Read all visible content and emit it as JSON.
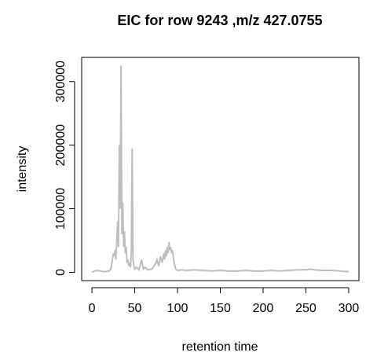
{
  "chart_data": {
    "type": "line",
    "title": "EIC for row 9243 ,m/z 427.0755",
    "x_label": "retention time",
    "y_label": "intensity",
    "color": "#bebebe",
    "x": [
      0,
      5,
      10,
      15,
      20,
      22,
      24,
      25,
      26,
      27,
      28,
      29,
      30,
      31,
      32,
      33,
      34,
      35,
      36,
      37,
      38,
      39,
      40,
      41,
      42,
      43,
      44,
      45,
      46,
      47,
      48,
      49,
      50,
      52,
      55,
      58,
      60,
      62,
      65,
      70,
      75,
      76,
      78,
      80,
      82,
      84,
      85,
      86,
      87,
      88,
      89,
      90,
      91,
      92,
      93,
      94,
      95,
      96,
      98,
      100,
      105,
      110,
      120,
      130,
      140,
      150,
      160,
      170,
      180,
      190,
      200,
      210,
      220,
      230,
      240,
      250,
      255,
      260,
      270,
      280,
      290,
      300
    ],
    "values": [
      0,
      3000,
      2000,
      1000,
      2000,
      5000,
      20000,
      30000,
      25000,
      35000,
      20000,
      50000,
      80000,
      40000,
      200000,
      100000,
      325000,
      60000,
      110000,
      40000,
      65000,
      30000,
      40000,
      15000,
      20000,
      10000,
      15000,
      8000,
      30000,
      195000,
      20000,
      10000,
      5000,
      8000,
      4000,
      20000,
      5000,
      8000,
      4000,
      5000,
      15000,
      20000,
      10000,
      25000,
      15000,
      30000,
      20000,
      35000,
      25000,
      40000,
      30000,
      48000,
      35000,
      40000,
      30000,
      35000,
      25000,
      15000,
      5000,
      3000,
      4000,
      3000,
      4000,
      3000,
      2000,
      3000,
      2000,
      2000,
      3000,
      2000,
      2000,
      3000,
      2000,
      3000,
      4000,
      4000,
      5000,
      4000,
      3000,
      3000,
      2000,
      1000
    ],
    "xlim": [
      -12,
      312
    ],
    "ylim": [
      -13000,
      338000
    ],
    "xticks": [
      0,
      50,
      100,
      150,
      200,
      250,
      300
    ],
    "yticks": [
      0,
      100000,
      200000,
      300000
    ]
  }
}
